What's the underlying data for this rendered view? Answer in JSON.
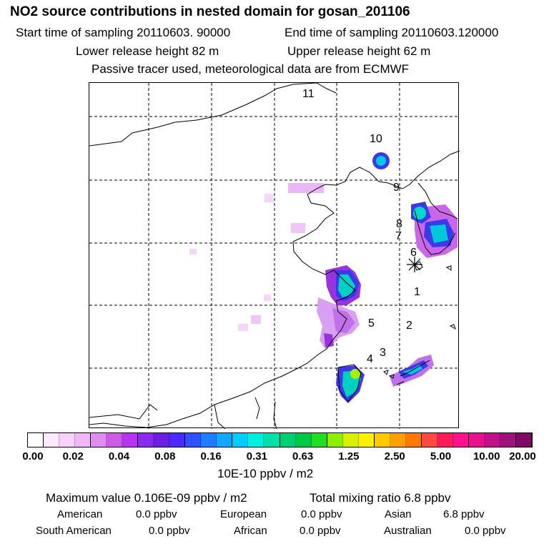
{
  "title": "NO2 source contributions in nested domain for gosan_201106",
  "start_sampling": "Start time of sampling 20110603. 90000",
  "end_sampling": "End time of sampling 20110603.120000",
  "lower_release": "Lower release height   82 m",
  "upper_release": "Upper release height   62 m",
  "tracer_note": "Passive tracer used, meteorological data are from ECMWF",
  "source_labels": [
    "1",
    "2",
    "3",
    "4",
    "5",
    "6",
    "7",
    "8",
    "9",
    "10",
    "11"
  ],
  "colorbar": {
    "ticks": [
      "0.00",
      "0.02",
      "0.04",
      "0.08",
      "0.16",
      "0.31",
      "0.63",
      "1.25",
      "2.50",
      "5.00",
      "10.00",
      "20.00"
    ],
    "colors": [
      "#ffffff",
      "#fbe8fc",
      "#f6d2fa",
      "#f0b8f6",
      "#e08cf0",
      "#cc5ce8",
      "#b833ee",
      "#8a2bf0",
      "#6a1fe0",
      "#4a28ff",
      "#2e50ff",
      "#1f7eff",
      "#11a8ff",
      "#00ccff",
      "#00f0e0",
      "#00e0a8",
      "#00d070",
      "#00c846",
      "#22dd22",
      "#8cf000",
      "#d8f000",
      "#fff000",
      "#ffcc00",
      "#ffa000",
      "#ff7a00",
      "#ff4a40",
      "#ff1a5a",
      "#ff1090",
      "#e8108c",
      "#c0108c",
      "#a0107a",
      "#800a66"
    ],
    "unit": "10E-10 ppbv / m2"
  },
  "max_value": "Maximum value  0.106E-09 ppbv / m2",
  "total_mixing": "Total mixing ratio        6.8 ppbv",
  "regions": [
    {
      "name": "American",
      "value": "0.0 ppbv"
    },
    {
      "name": "European",
      "value": "0.0 ppbv"
    },
    {
      "name": "Asian",
      "value": "6.8 ppbv"
    },
    {
      "name": "South American",
      "value": "0.0 ppbv"
    },
    {
      "name": "African",
      "value": "0.0 ppbv"
    },
    {
      "name": "Australian",
      "value": "0.0 ppbv"
    }
  ],
  "receptor": "receptor-star",
  "icons": {
    "receptor": "star-marker"
  }
}
